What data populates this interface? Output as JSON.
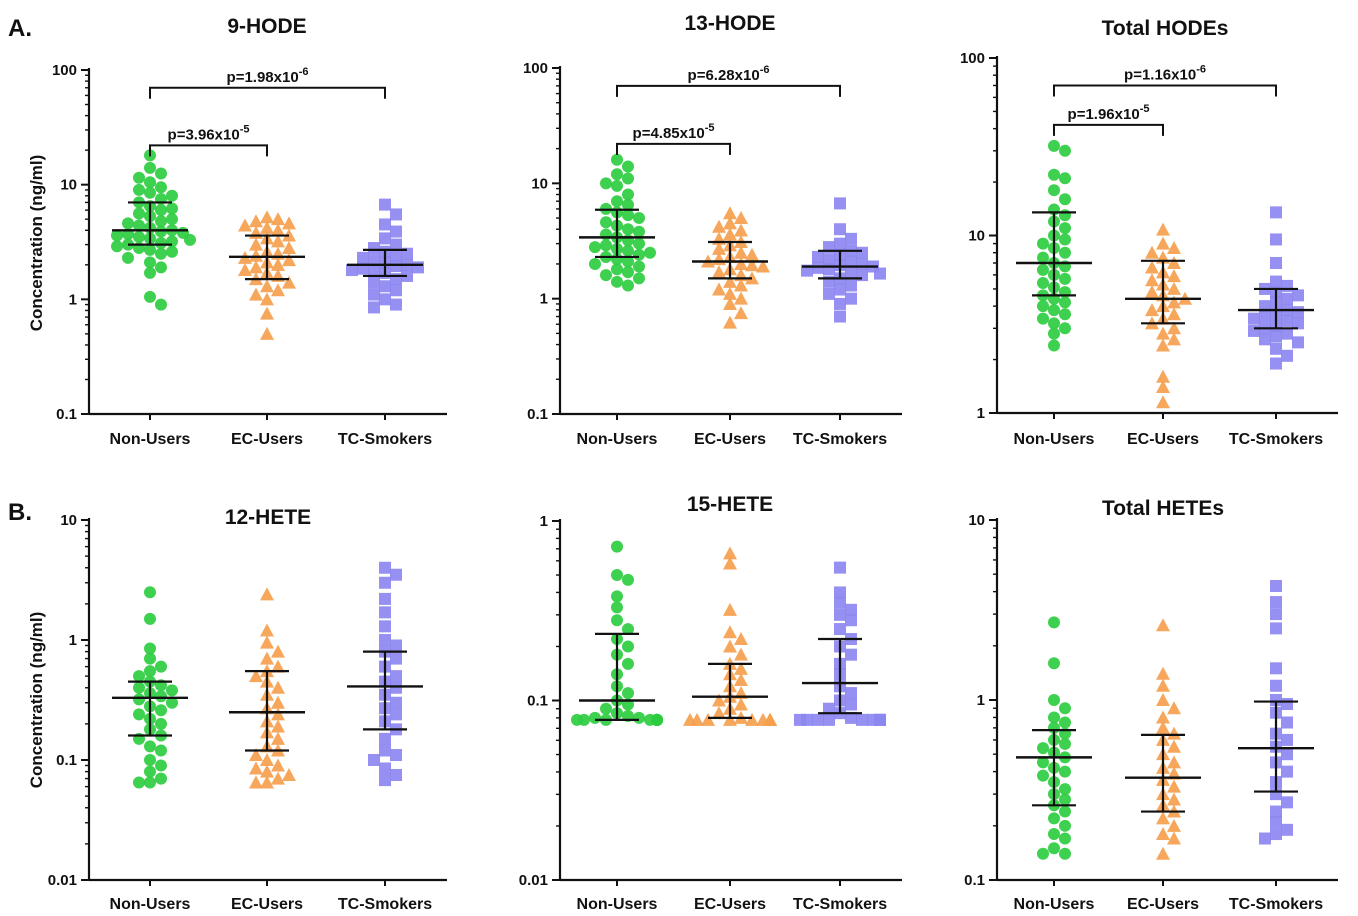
{
  "panel_labels": [
    "A.",
    "B."
  ],
  "chart_data": [
    {
      "type": "scatter",
      "title": "9-HODE",
      "ylabel": "Concentration (ng/ml)",
      "yscale": "log",
      "ylim": [
        0.1,
        100
      ],
      "yticks": [
        "0.1",
        "1",
        "10",
        "100"
      ],
      "categories": [
        "Non-Users",
        "EC-Users",
        "TC-Smokers"
      ],
      "series": [
        {
          "values": [
            18,
            14,
            12.5,
            11.5,
            10.5,
            9.5,
            9,
            8.5,
            8,
            7.5,
            7,
            6.5,
            6.2,
            6,
            5.6,
            5.3,
            5,
            4.8,
            4.6,
            4.4,
            4.2,
            4,
            3.9,
            3.8,
            3.7,
            3.6,
            3.5,
            3.4,
            3.3,
            3.2,
            3.1,
            3,
            2.9,
            2.8,
            2.7,
            2.6,
            2.5,
            2.3,
            2.1,
            1.9,
            1.7,
            1.05,
            0.9
          ],
          "median": 4,
          "iqr": [
            3,
            7
          ]
        },
        {
          "values": [
            5.2,
            5,
            4.8,
            4.6,
            4.4,
            4.2,
            4,
            3.8,
            3.6,
            3.4,
            3.2,
            3,
            2.8,
            2.6,
            2.5,
            2.4,
            2.3,
            2.2,
            2.1,
            2,
            1.9,
            1.8,
            1.7,
            1.6,
            1.5,
            1.4,
            1.3,
            1.2,
            1.1,
            1,
            0.75,
            0.5
          ],
          "median": 2.35,
          "iqr": [
            1.5,
            3.6
          ]
        },
        {
          "values": [
            6.7,
            5.5,
            4.5,
            3.9,
            3.4,
            3,
            2.8,
            2.6,
            2.5,
            2.4,
            2.3,
            2.2,
            2.1,
            2,
            1.95,
            1.9,
            1.85,
            1.8,
            1.75,
            1.7,
            1.6,
            1.5,
            1.4,
            1.3,
            1.2,
            1.1,
            1,
            0.9,
            0.85
          ],
          "median": 2,
          "iqr": [
            1.6,
            2.7
          ]
        }
      ],
      "colors": [
        "#2ecc40",
        "#f5a04e",
        "#8c87f0"
      ],
      "markers": [
        "circle",
        "triangle",
        "square"
      ],
      "brackets": [
        {
          "from": 0,
          "to": 2,
          "y": 70,
          "label": "p=1.98x10",
          "exp": "-6"
        },
        {
          "from": 0,
          "to": 1,
          "y": 22,
          "label": "p=3.96x10",
          "exp": "-5"
        }
      ]
    },
    {
      "type": "scatter",
      "title": "13-HODE",
      "yscale": "log",
      "ylim": [
        0.1,
        100
      ],
      "yticks": [
        "0.1",
        "1",
        "10",
        "100"
      ],
      "categories": [
        "Non-Users",
        "EC-Users",
        "TC-Smokers"
      ],
      "series": [
        {
          "values": [
            16,
            14,
            12,
            11,
            10,
            9.5,
            8,
            7,
            6.5,
            6,
            5.6,
            5.3,
            5,
            4.6,
            4.3,
            4,
            3.8,
            3.6,
            3.4,
            3.2,
            3,
            2.9,
            2.8,
            2.7,
            2.6,
            2.5,
            2.4,
            2.3,
            2.2,
            2.1,
            2,
            1.9,
            1.8,
            1.7,
            1.6,
            1.5,
            1.4,
            1.3
          ],
          "median": 3.4,
          "iqr": [
            2.3,
            5.9
          ]
        },
        {
          "values": [
            5.5,
            5,
            4.5,
            4.2,
            3.9,
            3.6,
            3.3,
            3.1,
            2.9,
            2.7,
            2.5,
            2.4,
            2.3,
            2.2,
            2.1,
            2,
            1.95,
            1.9,
            1.8,
            1.7,
            1.6,
            1.5,
            1.4,
            1.3,
            1.2,
            1.1,
            1,
            0.9,
            0.75,
            0.62
          ],
          "median": 2.1,
          "iqr": [
            1.5,
            3.1
          ]
        },
        {
          "values": [
            6.7,
            4,
            3.3,
            3,
            2.8,
            2.6,
            2.5,
            2.4,
            2.3,
            2.2,
            2.1,
            2,
            1.95,
            1.9,
            1.85,
            1.8,
            1.75,
            1.7,
            1.65,
            1.6,
            1.5,
            1.4,
            1.3,
            1.2,
            1.1,
            1,
            0.9,
            0.7
          ],
          "median": 1.9,
          "iqr": [
            1.5,
            2.6
          ]
        }
      ],
      "colors": [
        "#2ecc40",
        "#f5a04e",
        "#8c87f0"
      ],
      "markers": [
        "circle",
        "triangle",
        "square"
      ],
      "brackets": [
        {
          "from": 0,
          "to": 2,
          "y": 70,
          "label": "p=6.28x10",
          "exp": "-6"
        },
        {
          "from": 0,
          "to": 1,
          "y": 22,
          "label": "p=4.85x10",
          "exp": "-5"
        }
      ]
    },
    {
      "type": "scatter",
      "title": "Total HODEs",
      "yscale": "log",
      "ylim": [
        1,
        100
      ],
      "yticks": [
        "1",
        "10",
        "100"
      ],
      "categories": [
        "Non-Users",
        "EC-Users",
        "TC-Smokers"
      ],
      "series": [
        {
          "values": [
            32,
            30,
            22,
            21,
            18,
            16,
            14,
            13,
            12,
            11,
            10,
            9.5,
            9,
            8.5,
            8,
            7.5,
            7,
            6.7,
            6.4,
            6,
            5.7,
            5.4,
            5.1,
            4.8,
            4.6,
            4.4,
            4.2,
            4,
            3.8,
            3.6,
            3.4,
            3.2,
            3,
            2.8,
            2.4
          ],
          "median": 7,
          "iqr": [
            4.6,
            13.5
          ]
        },
        {
          "values": [
            10.8,
            9,
            8.5,
            8,
            7.5,
            7,
            6.6,
            6.2,
            5.9,
            5.6,
            5.3,
            5,
            4.8,
            4.6,
            4.4,
            4.2,
            4,
            3.8,
            3.6,
            3.4,
            3.2,
            3,
            2.8,
            2.6,
            2.4,
            1.6,
            1.4,
            1.15
          ],
          "median": 4.4,
          "iqr": [
            3.2,
            7.2
          ]
        },
        {
          "values": [
            13.5,
            9.5,
            7,
            5.5,
            5.2,
            5,
            4.8,
            4.6,
            4.4,
            4.2,
            4,
            3.8,
            3.7,
            3.6,
            3.5,
            3.4,
            3.3,
            3.2,
            3.1,
            3,
            2.9,
            2.8,
            2.7,
            2.6,
            2.5,
            2.3,
            2.1,
            1.9
          ],
          "median": 3.8,
          "iqr": [
            3,
            5
          ]
        }
      ],
      "colors": [
        "#2ecc40",
        "#f5a04e",
        "#8c87f0"
      ],
      "markers": [
        "circle",
        "triangle",
        "square"
      ],
      "brackets": [
        {
          "from": 0,
          "to": 2,
          "y": 70,
          "label": "p=1.16x10",
          "exp": "-6"
        },
        {
          "from": 0,
          "to": 1,
          "y": 42,
          "label": "p=1.96x10",
          "exp": "-5"
        }
      ]
    },
    {
      "type": "scatter",
      "title": "12-HETE",
      "ylabel": "Concentration (ng/ml)",
      "yscale": "log",
      "ylim": [
        0.01,
        10
      ],
      "yticks": [
        "0.01",
        "0.1",
        "1",
        "10"
      ],
      "categories": [
        "Non-Users",
        "EC-Users",
        "TC-Smokers"
      ],
      "series": [
        {
          "values": [
            2.5,
            1.5,
            0.85,
            0.7,
            0.6,
            0.55,
            0.5,
            0.45,
            0.42,
            0.4,
            0.38,
            0.36,
            0.34,
            0.32,
            0.3,
            0.28,
            0.26,
            0.24,
            0.22,
            0.2,
            0.18,
            0.16,
            0.15,
            0.13,
            0.12,
            0.1,
            0.09,
            0.08,
            0.07,
            0.065,
            0.065
          ],
          "median": 0.33,
          "iqr": [
            0.16,
            0.45
          ]
        },
        {
          "values": [
            2.4,
            1.2,
            0.95,
            0.8,
            0.7,
            0.6,
            0.55,
            0.5,
            0.45,
            0.4,
            0.35,
            0.3,
            0.27,
            0.24,
            0.21,
            0.19,
            0.17,
            0.15,
            0.13,
            0.12,
            0.11,
            0.1,
            0.09,
            0.085,
            0.08,
            0.075,
            0.07,
            0.065,
            0.065
          ],
          "median": 0.25,
          "iqr": [
            0.12,
            0.55
          ]
        },
        {
          "values": [
            4,
            3.5,
            3,
            2.2,
            1.7,
            1.3,
            1,
            0.9,
            0.8,
            0.7,
            0.6,
            0.5,
            0.45,
            0.4,
            0.35,
            0.3,
            0.27,
            0.24,
            0.21,
            0.18,
            0.15,
            0.12,
            0.11,
            0.1,
            0.085,
            0.075,
            0.068
          ],
          "median": 0.41,
          "iqr": [
            0.18,
            0.8
          ]
        }
      ],
      "colors": [
        "#2ecc40",
        "#f5a04e",
        "#8c87f0"
      ],
      "markers": [
        "circle",
        "triangle",
        "square"
      ],
      "brackets": []
    },
    {
      "type": "scatter",
      "title": "15-HETE",
      "yscale": "log",
      "ylim": [
        0.01,
        1
      ],
      "yticks": [
        "0.01",
        "0.1",
        "1"
      ],
      "categories": [
        "Non-Users",
        "EC-Users",
        "TC-Smokers"
      ],
      "series": [
        {
          "values": [
            0.72,
            0.5,
            0.47,
            0.38,
            0.33,
            0.28,
            0.25,
            0.22,
            0.2,
            0.18,
            0.16,
            0.14,
            0.12,
            0.11,
            0.1,
            0.095,
            0.09,
            0.085,
            0.082,
            0.08,
            0.08,
            0.078,
            0.078,
            0.078,
            0.078,
            0.078,
            0.078,
            0.078,
            0.078,
            0.078,
            0.078,
            0.078,
            0.078,
            0.078,
            0.078,
            0.078
          ],
          "median": 0.1,
          "iqr": [
            0.078,
            0.235
          ]
        },
        {
          "values": [
            0.66,
            0.58,
            0.32,
            0.24,
            0.22,
            0.2,
            0.18,
            0.16,
            0.15,
            0.14,
            0.13,
            0.12,
            0.11,
            0.105,
            0.1,
            0.095,
            0.09,
            0.085,
            0.08,
            0.078,
            0.078,
            0.078,
            0.078,
            0.078,
            0.078,
            0.078,
            0.078,
            0.078,
            0.078,
            0.078
          ],
          "median": 0.105,
          "iqr": [
            0.08,
            0.16
          ]
        },
        {
          "values": [
            0.55,
            0.4,
            0.35,
            0.32,
            0.3,
            0.28,
            0.25,
            0.22,
            0.2,
            0.18,
            0.16,
            0.14,
            0.12,
            0.11,
            0.1,
            0.095,
            0.09,
            0.085,
            0.08,
            0.078,
            0.078,
            0.078,
            0.078,
            0.078,
            0.078,
            0.078,
            0.078,
            0.078
          ],
          "median": 0.125,
          "iqr": [
            0.085,
            0.22
          ]
        }
      ],
      "colors": [
        "#2ecc40",
        "#f5a04e",
        "#8c87f0"
      ],
      "markers": [
        "circle",
        "triangle",
        "square"
      ],
      "brackets": []
    },
    {
      "type": "scatter",
      "title": "Total HETEs",
      "yscale": "log",
      "ylim": [
        0.1,
        10
      ],
      "yticks": [
        "0.1",
        "1",
        "10"
      ],
      "categories": [
        "Non-Users",
        "EC-Users",
        "TC-Smokers"
      ],
      "series": [
        {
          "values": [
            2.7,
            1.6,
            1,
            0.9,
            0.8,
            0.75,
            0.7,
            0.65,
            0.6,
            0.57,
            0.54,
            0.51,
            0.48,
            0.45,
            0.42,
            0.4,
            0.38,
            0.35,
            0.32,
            0.3,
            0.28,
            0.26,
            0.24,
            0.22,
            0.2,
            0.18,
            0.17,
            0.15,
            0.14,
            0.14
          ],
          "median": 0.48,
          "iqr": [
            0.26,
            0.68
          ]
        },
        {
          "values": [
            2.6,
            1.4,
            1.2,
            1,
            0.9,
            0.8,
            0.7,
            0.65,
            0.6,
            0.55,
            0.5,
            0.45,
            0.42,
            0.39,
            0.36,
            0.33,
            0.3,
            0.28,
            0.26,
            0.24,
            0.22,
            0.2,
            0.18,
            0.17,
            0.14
          ],
          "median": 0.37,
          "iqr": [
            0.24,
            0.64
          ]
        },
        {
          "values": [
            4.3,
            3.5,
            3,
            2.5,
            1.5,
            1.2,
            1,
            0.95,
            0.85,
            0.75,
            0.65,
            0.6,
            0.55,
            0.5,
            0.45,
            0.4,
            0.35,
            0.3,
            0.27,
            0.24,
            0.21,
            0.19,
            0.18,
            0.17
          ],
          "median": 0.54,
          "iqr": [
            0.31,
            0.98
          ]
        }
      ],
      "colors": [
        "#2ecc40",
        "#f5a04e",
        "#8c87f0"
      ],
      "markers": [
        "circle",
        "triangle",
        "square"
      ],
      "brackets": []
    }
  ]
}
